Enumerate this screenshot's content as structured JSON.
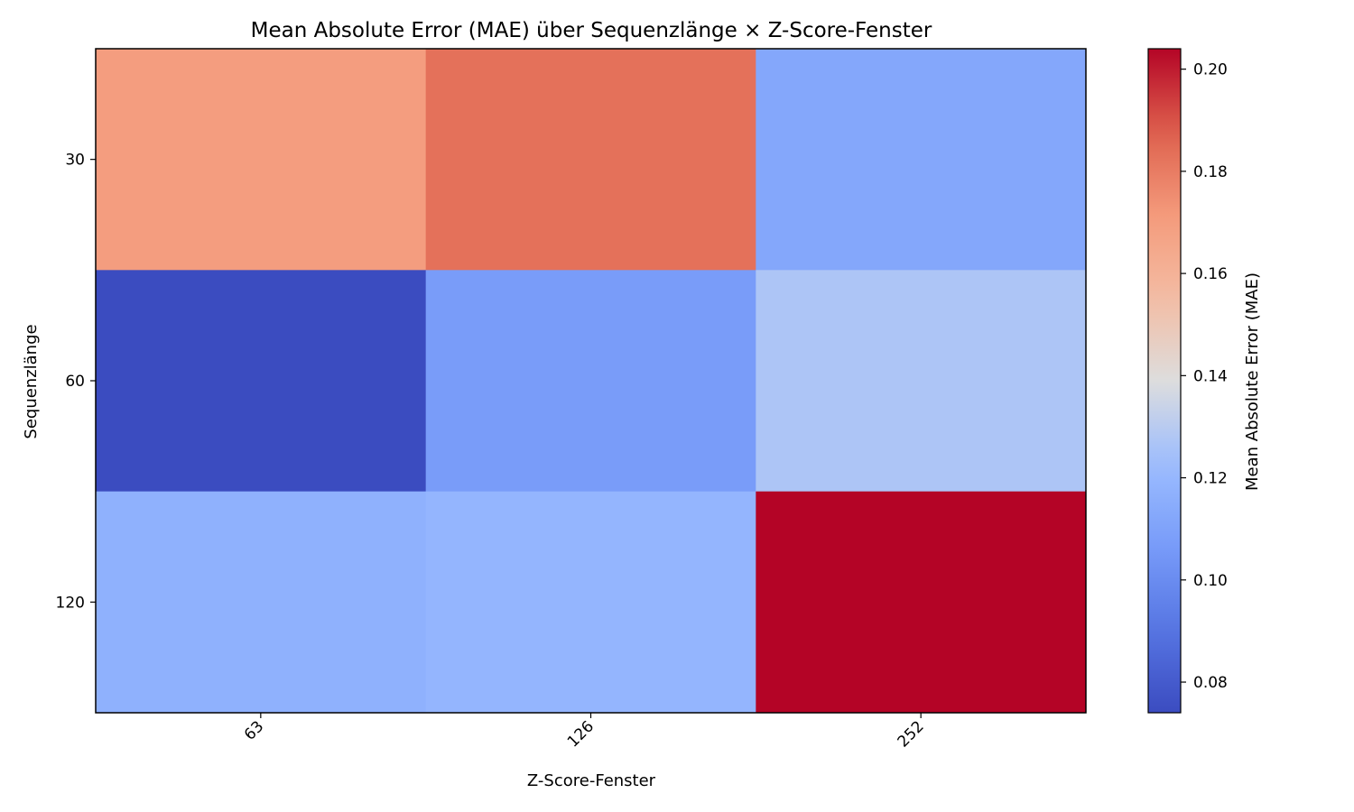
{
  "chart_data": {
    "type": "heatmap",
    "title": "Mean Absolute Error (MAE) über Sequenzlänge × Z-Score-Fenster",
    "xlabel": "Z-Score-Fenster",
    "ylabel": "Sequenzlänge",
    "x_categories": [
      "63",
      "126",
      "252"
    ],
    "y_categories": [
      "30",
      "60",
      "120"
    ],
    "values": [
      [
        0.17,
        0.183,
        0.112
      ],
      [
        0.074,
        0.107,
        0.127
      ],
      [
        0.117,
        0.119,
        0.204
      ]
    ],
    "colorbar": {
      "label": "Mean Absolute Error (MAE)",
      "range": [
        0.074,
        0.204
      ],
      "ticks": [
        0.08,
        0.1,
        0.12,
        0.14,
        0.16,
        0.18,
        0.2
      ],
      "colormap": "coolwarm",
      "low_color": "#3b4cc0",
      "mid_color": "#dddddd",
      "high_color": "#b40426"
    },
    "grid": false,
    "xtick_rotation": "45°"
  }
}
